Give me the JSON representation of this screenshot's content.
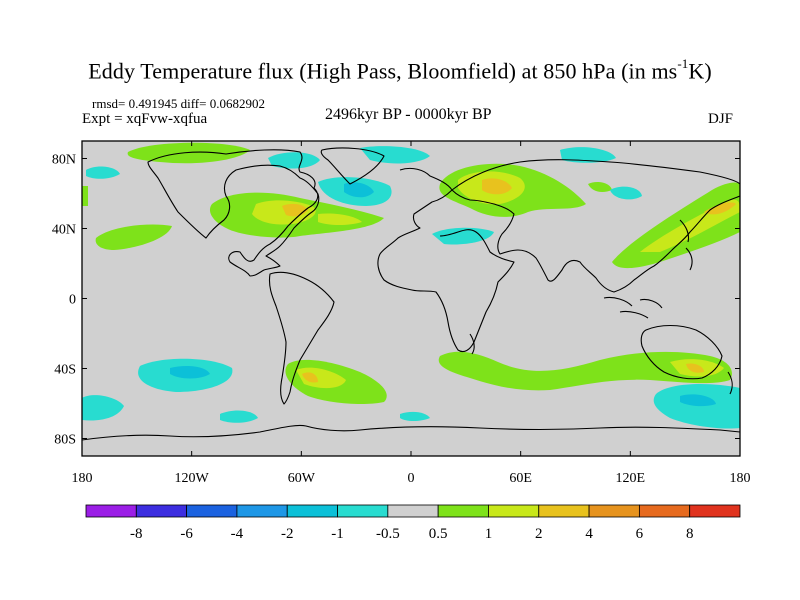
{
  "title": {
    "main": "Eddy Temperature flux (High Pass, Bloomfield) at 850 hPa (in ms",
    "sup": "-1",
    "end": "K)"
  },
  "stats": "rmsd= 0.491945 diff= 0.0682902",
  "experiment": "Expt = xqFvw-xqfua",
  "period": "2496kyr BP - 0000kyr BP",
  "season": "DJF",
  "map": {
    "lat_ticks": [
      "80N",
      "40N",
      "0",
      "40S",
      "80S"
    ],
    "lon_ticks": [
      "180",
      "120W",
      "60W",
      "0",
      "60E",
      "120E",
      "180"
    ],
    "lat_values": [
      80,
      40,
      0,
      -40,
      -80
    ],
    "lon_values": [
      -180,
      -120,
      -60,
      0,
      60,
      120,
      180
    ],
    "background_color": "#d0d0d0"
  },
  "colorbar": {
    "labels": [
      "-8",
      "-6",
      "-4",
      "-2",
      "-1",
      "-0.5",
      "0.5",
      "1",
      "2",
      "4",
      "6",
      "8"
    ],
    "colors": [
      "#9b1ee6",
      "#3d2ee0",
      "#1b62e0",
      "#1e97e6",
      "#0cc0d8",
      "#28dcd0",
      "#d0d0d0",
      "#7ee21a",
      "#c8e81a",
      "#e8c21e",
      "#e6931e",
      "#e66a1e",
      "#e0331e"
    ]
  }
}
